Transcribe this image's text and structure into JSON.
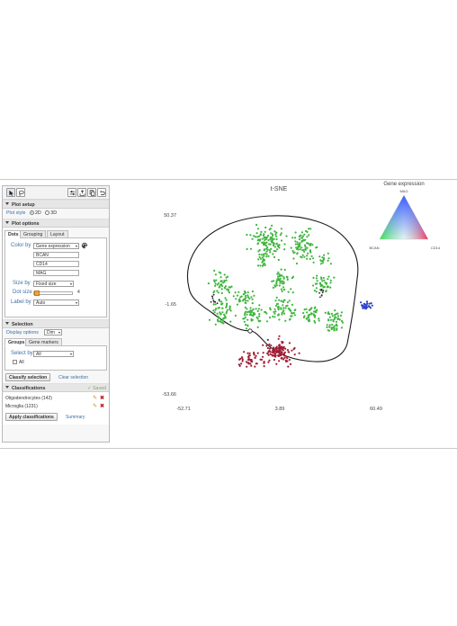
{
  "toolbar": {
    "buttons": [
      "pointer-tool",
      "lasso-tool",
      "settings",
      "export",
      "copy",
      "undo"
    ]
  },
  "plot_setup": {
    "header": "Plot setup",
    "plot_style_label": "Plot style",
    "option_2d": "2D",
    "option_3d": "3D"
  },
  "plot_options": {
    "header": "Plot options",
    "tabs": [
      "Dots",
      "Grouping",
      "Layout"
    ],
    "color_by_label": "Color by",
    "color_by_value": "Gene expression",
    "genes": [
      "BCAN",
      "CD14",
      "MAG"
    ],
    "size_by_label": "Size by",
    "size_by_value": "Fixed size",
    "dot_size_label": "Dot size",
    "dot_size_value": "4",
    "label_by_label": "Label by",
    "label_by_value": "Auto"
  },
  "selection": {
    "header": "Selection",
    "display_options_label": "Display options",
    "display_options_value": "Dim",
    "tabs": [
      "Groups",
      "Gene markers"
    ],
    "select_by_label": "Select by",
    "select_by_value": "All",
    "all_checkbox_label": "All",
    "classify_button": "Classify selection",
    "clear_link": "Clear selection"
  },
  "classifications": {
    "header": "Classifications",
    "saved_label": "Saved",
    "items": [
      "Oligodendrocytes (142)",
      "Microglia (1231)"
    ],
    "apply_button": "Apply classifications",
    "summary_link": "Summary"
  },
  "chart_data": {
    "type": "scatter",
    "title": "t-SNE",
    "xlim": [
      -52.71,
      60.49
    ],
    "ylim": [
      -53.66,
      50.37
    ],
    "x_ticks": [
      "-52.71",
      "3.89",
      "60.49"
    ],
    "y_ticks": [
      "50.37",
      "-1.65",
      "-53.66"
    ],
    "legend": {
      "title": "Gene expression",
      "top_label": "MAG",
      "left_label": "BCAN",
      "right_label": "CD14",
      "placement": "top-right"
    },
    "colors": {
      "green": "#3fb53f",
      "red": "#a01e35",
      "blue": "#2b3fc9",
      "black": "#222222"
    },
    "clusters": [
      {
        "color": "green",
        "cx": -3,
        "cy": 35,
        "rx": 9,
        "ry": 8,
        "n": 110
      },
      {
        "color": "green",
        "cx": 18,
        "cy": 32,
        "rx": 7,
        "ry": 8,
        "n": 80
      },
      {
        "color": "green",
        "cx": -30,
        "cy": 10,
        "rx": 6,
        "ry": 6,
        "n": 45
      },
      {
        "color": "green",
        "cx": 5,
        "cy": 12,
        "rx": 6,
        "ry": 6,
        "n": 50
      },
      {
        "color": "green",
        "cx": 28,
        "cy": 10,
        "rx": 6,
        "ry": 5,
        "n": 40
      },
      {
        "color": "green",
        "cx": -17,
        "cy": 2,
        "rx": 6,
        "ry": 5,
        "n": 35
      },
      {
        "color": "green",
        "cx": -30,
        "cy": -6,
        "rx": 6,
        "ry": 7,
        "n": 55
      },
      {
        "color": "green",
        "cx": -12,
        "cy": -8,
        "rx": 7,
        "ry": 6,
        "n": 55
      },
      {
        "color": "green",
        "cx": 6,
        "cy": -4,
        "rx": 6,
        "ry": 7,
        "n": 60
      },
      {
        "color": "green",
        "cx": 23,
        "cy": -7,
        "rx": 5,
        "ry": 6,
        "n": 40
      },
      {
        "color": "green",
        "cx": 36,
        "cy": -12,
        "rx": 5,
        "ry": 7,
        "n": 50
      },
      {
        "color": "green",
        "cx": -6,
        "cy": 24,
        "rx": 4,
        "ry": 4,
        "n": 20
      },
      {
        "color": "green",
        "cx": 30,
        "cy": 25,
        "rx": 4,
        "ry": 4,
        "n": 15
      },
      {
        "color": "red",
        "cx": 3,
        "cy": -29,
        "rx": 9,
        "ry": 6,
        "n": 130
      },
      {
        "color": "red",
        "cx": -13,
        "cy": -33,
        "rx": 6,
        "ry": 4,
        "n": 45
      },
      {
        "color": "blue",
        "cx": 55,
        "cy": -2,
        "rx": 3,
        "ry": 2,
        "n": 25
      },
      {
        "color": "black",
        "cx": -34,
        "cy": 2,
        "rx": 3,
        "ry": 3,
        "n": 10
      },
      {
        "color": "black",
        "cx": 27,
        "cy": 5,
        "rx": 3,
        "ry": 3,
        "n": 8
      }
    ]
  }
}
